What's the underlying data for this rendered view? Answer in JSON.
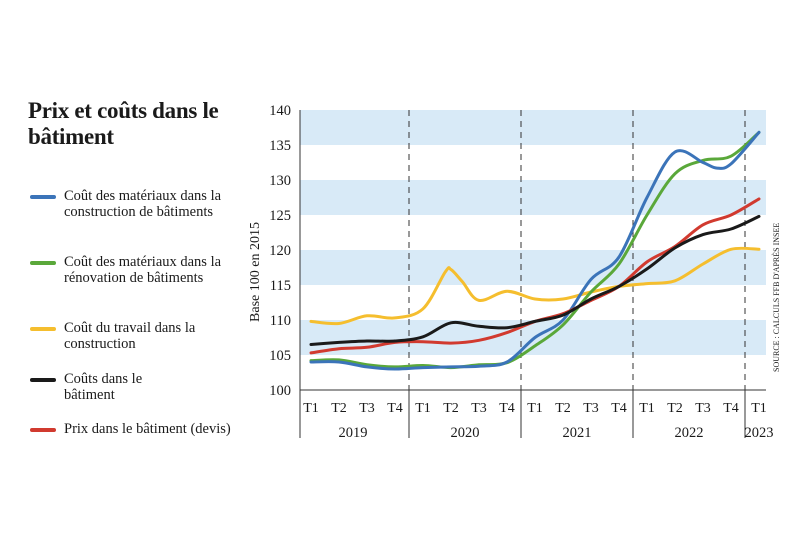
{
  "title": "Prix et coûts dans le bâtiment",
  "source": "SOURCE : CALCULS FFB D'APRÈS INSEE",
  "chart_data": {
    "type": "line",
    "ylabel": "Base 100 en 2015",
    "ylim": [
      100,
      140
    ],
    "yticks": [
      100,
      105,
      110,
      115,
      120,
      125,
      130,
      135,
      140
    ],
    "x": [
      0,
      1,
      2,
      3,
      4,
      5,
      6,
      7,
      8,
      9,
      10,
      11,
      12,
      13,
      14,
      15,
      16
    ],
    "quarters": [
      "T1",
      "T2",
      "T3",
      "T4",
      "T1",
      "T2",
      "T3",
      "T4",
      "T1",
      "T2",
      "T3",
      "T4",
      "T1",
      "T2",
      "T3",
      "T4",
      "T1"
    ],
    "years": [
      "2019",
      "2020",
      "2021",
      "2022",
      "2023"
    ],
    "year_start_index": [
      0,
      4,
      8,
      12,
      16
    ],
    "year_length": [
      4,
      4,
      4,
      4,
      1
    ],
    "grid": "horizontal bands",
    "series": [
      {
        "name": "Coût des matériaux dans la construction de bâtiments",
        "color": "#3b74b9",
        "x": [
          0,
          1,
          2,
          3,
          4,
          5,
          6,
          7,
          8,
          9,
          10,
          11,
          12,
          13,
          14,
          14.5,
          15,
          16
        ],
        "values": [
          104.0,
          104.0,
          103.3,
          103.0,
          103.2,
          103.3,
          103.4,
          104.0,
          107.5,
          110.0,
          115.8,
          119.0,
          127.5,
          134.0,
          132.5,
          131.7,
          132.3,
          136.8
        ]
      },
      {
        "name": "Coût des matériaux dans la rénovation de bâtiments",
        "color": "#5aa83a",
        "x": [
          0,
          1,
          2,
          3,
          4,
          5,
          6,
          7,
          8,
          9,
          10,
          11,
          12,
          13,
          14,
          15,
          16
        ],
        "values": [
          104.2,
          104.3,
          103.6,
          103.3,
          103.5,
          103.2,
          103.6,
          103.9,
          106.3,
          109.3,
          114.0,
          118.0,
          125.0,
          130.9,
          132.8,
          133.4,
          136.8
        ]
      },
      {
        "name": "Coût du travail dans la construction",
        "color": "#f5be2e",
        "x": [
          0,
          1,
          2,
          3,
          4,
          4.8,
          5,
          5.4,
          6,
          7,
          8,
          9,
          10,
          11,
          12,
          13,
          14,
          15,
          16
        ],
        "values": [
          109.8,
          109.5,
          110.6,
          110.3,
          111.6,
          116.9,
          117.2,
          115.5,
          112.8,
          114.1,
          113.0,
          113.0,
          114.0,
          114.8,
          115.2,
          115.6,
          118.0,
          120.1,
          120.1
        ]
      },
      {
        "name": "Coûts dans le bâtiment",
        "color": "#1a1a1a",
        "x": [
          0,
          1,
          2,
          3,
          4,
          5,
          6,
          7,
          8,
          9,
          10,
          11,
          12,
          13,
          14,
          15,
          16
        ],
        "values": [
          106.5,
          106.8,
          107.0,
          107.0,
          107.6,
          109.6,
          109.1,
          108.9,
          109.8,
          110.7,
          113.0,
          114.8,
          117.3,
          120.3,
          122.2,
          123.0,
          124.8
        ]
      },
      {
        "name": "Prix dans le bâtiment (devis)",
        "color": "#d13a2f",
        "x": [
          0,
          1,
          2,
          3,
          4,
          5,
          6,
          7,
          8,
          9,
          10,
          11,
          12,
          13,
          14,
          15,
          16
        ],
        "values": [
          105.3,
          105.9,
          106.1,
          106.8,
          106.9,
          106.7,
          107.1,
          108.2,
          109.8,
          110.9,
          112.8,
          114.8,
          118.3,
          120.5,
          123.6,
          125.0,
          127.3
        ]
      }
    ]
  }
}
